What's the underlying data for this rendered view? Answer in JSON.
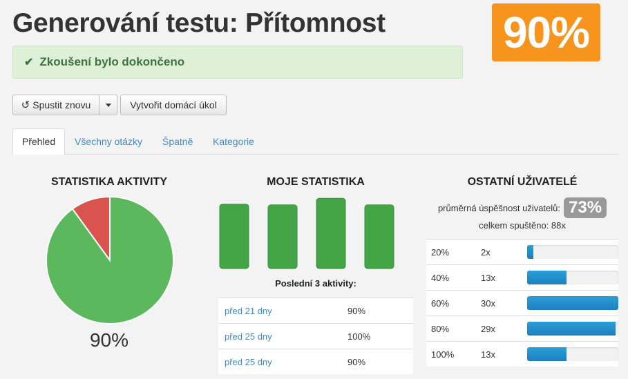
{
  "header": {
    "title": "Generování testu: Přítomnost",
    "score": "90%"
  },
  "alert": {
    "icon": "check-icon",
    "text": "Zkoušení bylo dokončeno"
  },
  "toolbar": {
    "restart_label": "Spustit znovu",
    "restart_icon": "refresh-icon",
    "homework_label": "Vytvořit domácí úkol"
  },
  "tabs": [
    {
      "label": "Přehled",
      "active": true
    },
    {
      "label": "Všechny otázky"
    },
    {
      "label": "Špatně"
    },
    {
      "label": "Kategorie"
    }
  ],
  "activity_stats": {
    "title": "STATISTIKA AKTIVITY",
    "percent_label": "90%"
  },
  "chart_data": {
    "type": "pie",
    "title": "STATISTIKA AKTIVITY",
    "values": [
      90,
      10
    ],
    "colors": [
      "#5cb85c",
      "#d9534f"
    ]
  },
  "my_stats": {
    "title": "MOJE STATISTIKA",
    "bar_levels": [
      0.88,
      0.87,
      0.96,
      0.87
    ],
    "last_label": "Poslední 3 aktivity:",
    "activities": [
      {
        "when": "před 21 dny",
        "score": "90%"
      },
      {
        "when": "před 25 dny",
        "score": "100%"
      },
      {
        "when": "před 25 dny",
        "score": "90%"
      }
    ]
  },
  "others": {
    "title": "OSTATNÍ UŽIVATELÉ",
    "avg_label": "průměrná úspěšnost uživatelů:",
    "avg_value": "73%",
    "total_label": "celkem spuštěno: 88x",
    "distribution": [
      {
        "pct": "20%",
        "count": "2x",
        "level": 0.067
      },
      {
        "pct": "40%",
        "count": "13x",
        "level": 0.433
      },
      {
        "pct": "60%",
        "count": "30x",
        "level": 1.0
      },
      {
        "pct": "80%",
        "count": "29x",
        "level": 0.967
      },
      {
        "pct": "100%",
        "count": "13x",
        "level": 0.433
      }
    ]
  },
  "colors": {
    "accent": "#f7941d",
    "success_bg": "#dff0d8",
    "success_text": "#3c763d",
    "link": "#428bca",
    "bar_green": "#43a546",
    "progress_blue": "#2a9fd6",
    "badge_gray": "#999999"
  }
}
